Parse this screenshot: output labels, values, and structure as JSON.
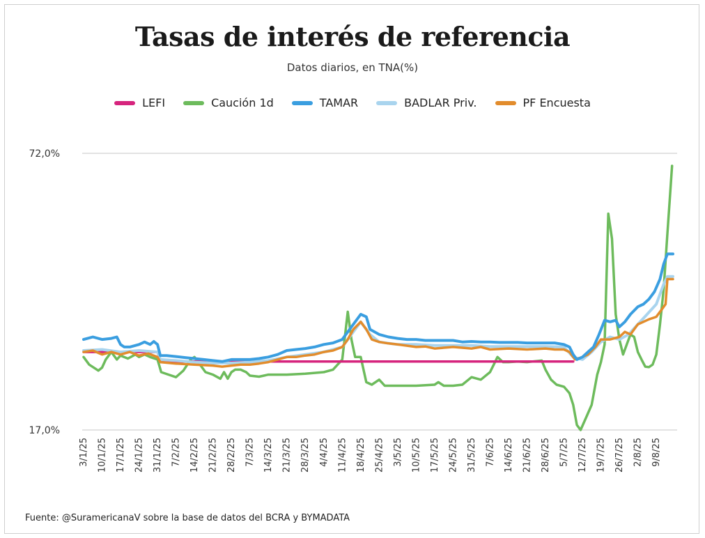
{
  "chart_data": {
    "type": "line",
    "title": "Tasas de interés de referencia",
    "subtitle": "Datos diarios, en TNA(%)",
    "ylim": [
      17,
      72
    ],
    "yticks": [
      {
        "value": 72,
        "label": "72,0%"
      },
      {
        "value": 17,
        "label": "17,0%"
      }
    ],
    "grid": "horizontal",
    "legend_position": "top",
    "x_tick_labels": [
      "3/1/25",
      "10/1/25",
      "17/1/25",
      "24/1/25",
      "31/1/25",
      "7/2/25",
      "14/2/25",
      "21/2/25",
      "28/2/25",
      "7/3/25",
      "14/3/25",
      "21/3/25",
      "28/3/25",
      "4/4/25",
      "11/4/25",
      "18/4/25",
      "25/4/25",
      "3/5/25",
      "10/5/25",
      "17/5/25",
      "24/5/25",
      "31/5/25",
      "7/6/25",
      "14/6/25",
      "21/6/25",
      "28/6/25",
      "5/7/25",
      "12/7/25",
      "19/7/25",
      "26/7/25",
      "2/8/25",
      "9/8/25"
    ],
    "x_index_range": [
      0,
      31.9
    ],
    "series": [
      {
        "name": "LEFI",
        "color": "#d6247d",
        "points": [
          [
            0,
            32.5
          ],
          [
            4,
            32.5
          ],
          [
            4.15,
            30.6
          ],
          [
            26.5,
            30.6
          ]
        ]
      },
      {
        "name": "Caución 1d",
        "color": "#6dbb5c",
        "points": [
          [
            0,
            31.5
          ],
          [
            0.3,
            30
          ],
          [
            0.8,
            28.8
          ],
          [
            1,
            29.4
          ],
          [
            1.2,
            31
          ],
          [
            1.5,
            32.5
          ],
          [
            1.8,
            31
          ],
          [
            2,
            31.8
          ],
          [
            2.4,
            31.2
          ],
          [
            2.8,
            32
          ],
          [
            3,
            31.5
          ],
          [
            3.3,
            32
          ],
          [
            3.6,
            31.5
          ],
          [
            4,
            31
          ],
          [
            4.2,
            28.5
          ],
          [
            4.6,
            28
          ],
          [
            5,
            27.5
          ],
          [
            5.4,
            28.8
          ],
          [
            5.8,
            31
          ],
          [
            6,
            31.5
          ],
          [
            6.3,
            30
          ],
          [
            6.6,
            28.5
          ],
          [
            7,
            28
          ],
          [
            7.4,
            27.2
          ],
          [
            7.6,
            28.5
          ],
          [
            7.8,
            27.2
          ],
          [
            8,
            28.5
          ],
          [
            8.2,
            29
          ],
          [
            8.5,
            29
          ],
          [
            8.8,
            28.5
          ],
          [
            9,
            27.8
          ],
          [
            9.5,
            27.6
          ],
          [
            10,
            28
          ],
          [
            11,
            28
          ],
          [
            12,
            28.2
          ],
          [
            13,
            28.5
          ],
          [
            13.5,
            29
          ],
          [
            14,
            31
          ],
          [
            14.3,
            40.5
          ],
          [
            14.5,
            35
          ],
          [
            14.7,
            31.5
          ],
          [
            15,
            31.5
          ],
          [
            15.3,
            26.5
          ],
          [
            15.6,
            26
          ],
          [
            16,
            27
          ],
          [
            16.3,
            25.8
          ],
          [
            17,
            25.8
          ],
          [
            18,
            25.8
          ],
          [
            19,
            26
          ],
          [
            19.2,
            26.5
          ],
          [
            19.5,
            25.8
          ],
          [
            20,
            25.8
          ],
          [
            20.5,
            26
          ],
          [
            21,
            27.5
          ],
          [
            21.5,
            27
          ],
          [
            22,
            28.5
          ],
          [
            22.2,
            30
          ],
          [
            22.4,
            31.5
          ],
          [
            22.7,
            30.5
          ],
          [
            23,
            30.5
          ],
          [
            23.5,
            30.6
          ],
          [
            24,
            30.5
          ],
          [
            24.8,
            30.8
          ],
          [
            25,
            29
          ],
          [
            25.3,
            27
          ],
          [
            25.6,
            26
          ],
          [
            26,
            25.6
          ],
          [
            26.3,
            24.3
          ],
          [
            26.5,
            22
          ],
          [
            26.7,
            18
          ],
          [
            26.9,
            17
          ],
          [
            27.2,
            19.5
          ],
          [
            27.5,
            22
          ],
          [
            27.8,
            28
          ],
          [
            28,
            30.5
          ],
          [
            28.2,
            34
          ],
          [
            28.4,
            60
          ],
          [
            28.6,
            55
          ],
          [
            28.8,
            40
          ],
          [
            29,
            35
          ],
          [
            29.2,
            32
          ],
          [
            29.4,
            34
          ],
          [
            29.6,
            36
          ],
          [
            29.8,
            35.5
          ],
          [
            30,
            32.5
          ],
          [
            30.2,
            31
          ],
          [
            30.4,
            29.6
          ],
          [
            30.6,
            29.5
          ],
          [
            30.8,
            30
          ],
          [
            31,
            32
          ],
          [
            31.2,
            38
          ],
          [
            31.4,
            45
          ],
          [
            31.6,
            56
          ],
          [
            31.75,
            64
          ],
          [
            31.85,
            69.5
          ]
        ]
      },
      {
        "name": "TAMAR",
        "color": "#3a9ee0",
        "points": [
          [
            0,
            35
          ],
          [
            0.5,
            35.5
          ],
          [
            1,
            35
          ],
          [
            1.5,
            35.2
          ],
          [
            1.8,
            35.5
          ],
          [
            2,
            34
          ],
          [
            2.2,
            33.5
          ],
          [
            2.5,
            33.5
          ],
          [
            3,
            34
          ],
          [
            3.3,
            34.5
          ],
          [
            3.6,
            34
          ],
          [
            3.8,
            34.6
          ],
          [
            4,
            34
          ],
          [
            4.15,
            31.8
          ],
          [
            4.5,
            31.8
          ],
          [
            5,
            31.6
          ],
          [
            5.5,
            31.4
          ],
          [
            6,
            31.2
          ],
          [
            6.5,
            31
          ],
          [
            7,
            30.8
          ],
          [
            7.5,
            30.6
          ],
          [
            8,
            31
          ],
          [
            8.5,
            31
          ],
          [
            9,
            31
          ],
          [
            9.5,
            31.2
          ],
          [
            10,
            31.5
          ],
          [
            10.5,
            32
          ],
          [
            11,
            32.8
          ],
          [
            11.5,
            33
          ],
          [
            12,
            33.2
          ],
          [
            12.5,
            33.5
          ],
          [
            13,
            34
          ],
          [
            13.5,
            34.3
          ],
          [
            14,
            35
          ],
          [
            14.3,
            36.5
          ],
          [
            14.6,
            38
          ],
          [
            15,
            40
          ],
          [
            15.3,
            39.5
          ],
          [
            15.5,
            37
          ],
          [
            16,
            36
          ],
          [
            16.5,
            35.5
          ],
          [
            17,
            35.2
          ],
          [
            17.5,
            35
          ],
          [
            18,
            35
          ],
          [
            18.5,
            34.8
          ],
          [
            19,
            34.8
          ],
          [
            19.5,
            34.8
          ],
          [
            20,
            34.8
          ],
          [
            20.5,
            34.5
          ],
          [
            21,
            34.6
          ],
          [
            21.5,
            34.5
          ],
          [
            22,
            34.5
          ],
          [
            22.5,
            34.4
          ],
          [
            23,
            34.4
          ],
          [
            23.5,
            34.4
          ],
          [
            24,
            34.3
          ],
          [
            24.5,
            34.3
          ],
          [
            25,
            34.3
          ],
          [
            25.5,
            34.3
          ],
          [
            26,
            34
          ],
          [
            26.3,
            33.5
          ],
          [
            26.5,
            32
          ],
          [
            26.7,
            31
          ],
          [
            27,
            31.5
          ],
          [
            27.3,
            32.5
          ],
          [
            27.6,
            33.5
          ],
          [
            27.9,
            36
          ],
          [
            28.2,
            38.8
          ],
          [
            28.5,
            38.5
          ],
          [
            28.8,
            38.8
          ],
          [
            29,
            37.5
          ],
          [
            29.3,
            38.5
          ],
          [
            29.6,
            40
          ],
          [
            30,
            41.5
          ],
          [
            30.3,
            42
          ],
          [
            30.6,
            43
          ],
          [
            30.9,
            44.5
          ],
          [
            31.2,
            47
          ],
          [
            31.4,
            50
          ],
          [
            31.6,
            52
          ],
          [
            31.9,
            52
          ]
        ]
      },
      {
        "name": "BADLAR Priv.",
        "color": "#a9d4ee",
        "points": [
          [
            0,
            32.8
          ],
          [
            1,
            33
          ],
          [
            2,
            32.5
          ],
          [
            3,
            32.8
          ],
          [
            4,
            32.5
          ],
          [
            4.15,
            31
          ],
          [
            5,
            30.8
          ],
          [
            6,
            30.5
          ],
          [
            7,
            30.3
          ],
          [
            8,
            30.3
          ],
          [
            9,
            30.5
          ],
          [
            10,
            30.8
          ],
          [
            11,
            31.5
          ],
          [
            12,
            32
          ],
          [
            13,
            32.5
          ],
          [
            14,
            33.5
          ],
          [
            14.5,
            36
          ],
          [
            15,
            38.5
          ],
          [
            15.5,
            36
          ],
          [
            16,
            34.5
          ],
          [
            17,
            34
          ],
          [
            18,
            34
          ],
          [
            19,
            33.8
          ],
          [
            20,
            33.8
          ],
          [
            21,
            33.8
          ],
          [
            22,
            33.6
          ],
          [
            23,
            33.6
          ],
          [
            24,
            33.6
          ],
          [
            25,
            33.6
          ],
          [
            26,
            33.5
          ],
          [
            26.5,
            31.5
          ],
          [
            27,
            31
          ],
          [
            27.5,
            32.5
          ],
          [
            28,
            34.5
          ],
          [
            28.5,
            35.5
          ],
          [
            29,
            35
          ],
          [
            29.5,
            36
          ],
          [
            30,
            38
          ],
          [
            30.5,
            40
          ],
          [
            31,
            42
          ],
          [
            31.4,
            46
          ],
          [
            31.6,
            47.5
          ],
          [
            31.9,
            47.5
          ]
        ]
      },
      {
        "name": "PF Encuesta",
        "color": "#e28c2c",
        "points": [
          [
            0,
            32.5
          ],
          [
            0.5,
            32.8
          ],
          [
            1,
            32
          ],
          [
            1.5,
            32.5
          ],
          [
            2,
            32
          ],
          [
            2.5,
            32.5
          ],
          [
            3,
            31.8
          ],
          [
            3.5,
            32.2
          ],
          [
            4,
            31.5
          ],
          [
            4.15,
            30.5
          ],
          [
            5,
            30.2
          ],
          [
            6,
            30
          ],
          [
            7,
            29.8
          ],
          [
            7.5,
            29.6
          ],
          [
            8,
            29.8
          ],
          [
            8.5,
            30
          ],
          [
            9,
            30
          ],
          [
            9.5,
            30.2
          ],
          [
            10,
            30.5
          ],
          [
            10.5,
            31
          ],
          [
            11,
            31.5
          ],
          [
            11.5,
            31.5
          ],
          [
            12,
            31.8
          ],
          [
            12.5,
            32
          ],
          [
            13,
            32.5
          ],
          [
            13.5,
            32.8
          ],
          [
            14,
            33.5
          ],
          [
            14.3,
            35
          ],
          [
            14.6,
            37
          ],
          [
            15,
            38.5
          ],
          [
            15.3,
            37
          ],
          [
            15.6,
            35
          ],
          [
            16,
            34.5
          ],
          [
            16.5,
            34.2
          ],
          [
            17,
            34
          ],
          [
            18,
            33.5
          ],
          [
            18.5,
            33.6
          ],
          [
            19,
            33.2
          ],
          [
            20,
            33.5
          ],
          [
            21,
            33.2
          ],
          [
            21.5,
            33.5
          ],
          [
            22,
            33
          ],
          [
            23,
            33.2
          ],
          [
            24,
            33
          ],
          [
            25,
            33.2
          ],
          [
            25.5,
            33
          ],
          [
            26,
            33
          ],
          [
            26.3,
            32.5
          ],
          [
            26.6,
            31
          ],
          [
            27,
            31.5
          ],
          [
            27.3,
            32
          ],
          [
            27.7,
            33.5
          ],
          [
            28,
            35
          ],
          [
            28.5,
            35
          ],
          [
            29,
            35.5
          ],
          [
            29.3,
            36.5
          ],
          [
            29.6,
            36
          ],
          [
            30,
            38
          ],
          [
            30.3,
            38.5
          ],
          [
            30.6,
            39
          ],
          [
            31,
            39.5
          ],
          [
            31.3,
            41
          ],
          [
            31.5,
            42
          ],
          [
            31.6,
            47
          ],
          [
            31.9,
            47
          ]
        ]
      }
    ]
  },
  "source": "Fuente: @SuramericanaV sobre la base de datos del BCRA y BYMADATA"
}
